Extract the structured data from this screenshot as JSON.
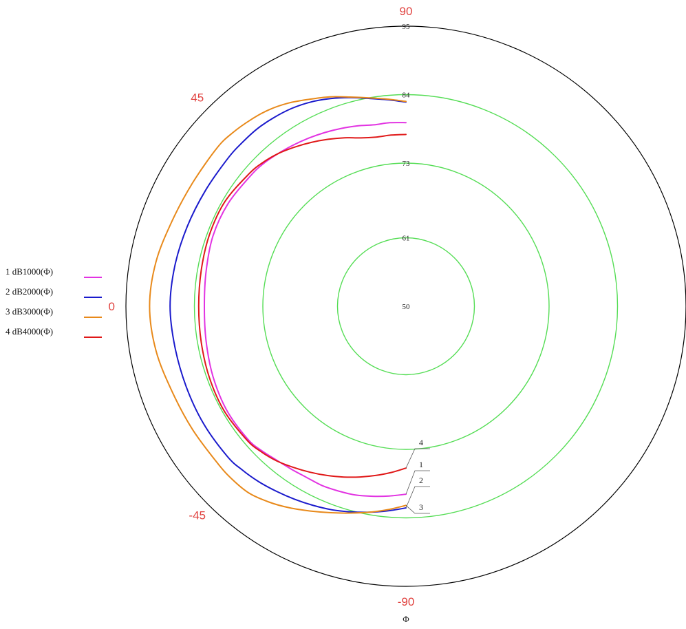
{
  "chart_data": {
    "type": "polar-line",
    "r_range": [
      50,
      95
    ],
    "angle_range": [
      -90,
      90
    ],
    "angle_labels": [
      "90",
      "45",
      "0",
      "-45",
      "-90"
    ],
    "angle_label_values": [
      90,
      45,
      0,
      -45,
      -90
    ],
    "ring_labels": [
      "50",
      "61",
      "73",
      "84",
      "95"
    ],
    "ring_values": [
      50,
      61,
      73,
      84,
      95
    ],
    "axis_symbol": "Φ",
    "colors": {
      "outer_circle": "#000000",
      "grid": "#55dd55",
      "angle_labels": "#e0413e"
    },
    "legend": {
      "placement": "left",
      "items": [
        {
          "label": "1 dB1000(Φ)",
          "color": "#e233e2"
        },
        {
          "label": "2 dB2000(Φ)",
          "color": "#1a1acc"
        },
        {
          "label": "3 dB3000(Φ)",
          "color": "#e8891a"
        },
        {
          "label": "4 dB4000(Φ)",
          "color": "#e01818"
        }
      ]
    },
    "series": [
      {
        "name": "1 dB1000(Φ)",
        "callout": "1",
        "color": "#e233e2",
        "points": [
          [
            -90,
            80.2
          ],
          [
            -85,
            80.6
          ],
          [
            -80,
            81.0
          ],
          [
            -75,
            81.4
          ],
          [
            -70,
            81.6
          ],
          [
            -65,
            81.8
          ],
          [
            -60,
            81.8
          ],
          [
            -55,
            82.0
          ],
          [
            -50,
            82.3
          ],
          [
            -45,
            82.8
          ],
          [
            -40,
            83.2
          ],
          [
            -30,
            83.3
          ],
          [
            -20,
            83.0
          ],
          [
            -10,
            82.6
          ],
          [
            0,
            82.4
          ],
          [
            10,
            82.6
          ],
          [
            20,
            83.0
          ],
          [
            30,
            83.0
          ],
          [
            40,
            82.6
          ],
          [
            45,
            82.4
          ],
          [
            50,
            82.0
          ],
          [
            55,
            81.6
          ],
          [
            60,
            81.2
          ],
          [
            65,
            80.8
          ],
          [
            70,
            80.4
          ],
          [
            75,
            80.0
          ],
          [
            80,
            79.6
          ],
          [
            85,
            79.6
          ],
          [
            90,
            79.5
          ]
        ]
      },
      {
        "name": "2 dB2000(Φ)",
        "callout": "2",
        "color": "#1a1acc",
        "points": [
          [
            -90,
            82.4
          ],
          [
            -85,
            83.0
          ],
          [
            -80,
            83.6
          ],
          [
            -75,
            84.2
          ],
          [
            -70,
            84.8
          ],
          [
            -65,
            85.3
          ],
          [
            -60,
            85.8
          ],
          [
            -55,
            86.3
          ],
          [
            -50,
            86.8
          ],
          [
            -45,
            87.2
          ],
          [
            -40,
            87.5
          ],
          [
            -30,
            87.6
          ],
          [
            -20,
            87.6
          ],
          [
            -10,
            87.7
          ],
          [
            0,
            87.9
          ],
          [
            10,
            87.7
          ],
          [
            20,
            87.4
          ],
          [
            30,
            87.2
          ],
          [
            40,
            87.2
          ],
          [
            45,
            87.2
          ],
          [
            50,
            87.2
          ],
          [
            55,
            87.0
          ],
          [
            60,
            86.7
          ],
          [
            65,
            86.2
          ],
          [
            70,
            85.5
          ],
          [
            75,
            84.7
          ],
          [
            80,
            83.9
          ],
          [
            85,
            83.3
          ],
          [
            90,
            82.8
          ]
        ]
      },
      {
        "name": "3 dB3000(Φ)",
        "callout": "3",
        "color": "#e8891a",
        "points": [
          [
            -90,
            82.0
          ],
          [
            -85,
            82.8
          ],
          [
            -80,
            83.6
          ],
          [
            -75,
            84.4
          ],
          [
            -70,
            85.3
          ],
          [
            -65,
            86.3
          ],
          [
            -60,
            87.4
          ],
          [
            -55,
            88.4
          ],
          [
            -50,
            89.2
          ],
          [
            -45,
            89.4
          ],
          [
            -40,
            89.4
          ],
          [
            -30,
            89.6
          ],
          [
            -20,
            90.0
          ],
          [
            -10,
            90.8
          ],
          [
            0,
            91.2
          ],
          [
            10,
            90.8
          ],
          [
            20,
            90.0
          ],
          [
            30,
            89.6
          ],
          [
            40,
            89.6
          ],
          [
            45,
            89.4
          ],
          [
            50,
            89.0
          ],
          [
            55,
            88.5
          ],
          [
            60,
            87.7
          ],
          [
            65,
            86.7
          ],
          [
            70,
            85.8
          ],
          [
            75,
            84.8
          ],
          [
            80,
            84.0
          ],
          [
            85,
            83.4
          ],
          [
            90,
            82.9
          ]
        ]
      },
      {
        "name": "4 dB4000(Φ)",
        "callout": "4",
        "color": "#e01818",
        "points": [
          [
            -90,
            76.0
          ],
          [
            -85,
            76.8
          ],
          [
            -80,
            77.6
          ],
          [
            -75,
            78.4
          ],
          [
            -70,
            79.2
          ],
          [
            -65,
            80.0
          ],
          [
            -60,
            80.8
          ],
          [
            -55,
            81.6
          ],
          [
            -50,
            82.4
          ],
          [
            -45,
            83.0
          ],
          [
            -40,
            83.4
          ],
          [
            -30,
            83.7
          ],
          [
            -20,
            83.6
          ],
          [
            -10,
            83.4
          ],
          [
            0,
            83.3
          ],
          [
            10,
            83.4
          ],
          [
            20,
            83.6
          ],
          [
            30,
            83.6
          ],
          [
            40,
            83.0
          ],
          [
            45,
            82.6
          ],
          [
            50,
            82.0
          ],
          [
            55,
            81.2
          ],
          [
            60,
            80.4
          ],
          [
            65,
            79.6
          ],
          [
            70,
            78.8
          ],
          [
            75,
            78.0
          ],
          [
            80,
            77.6
          ],
          [
            85,
            77.6
          ],
          [
            90,
            77.6
          ]
        ]
      }
    ]
  }
}
